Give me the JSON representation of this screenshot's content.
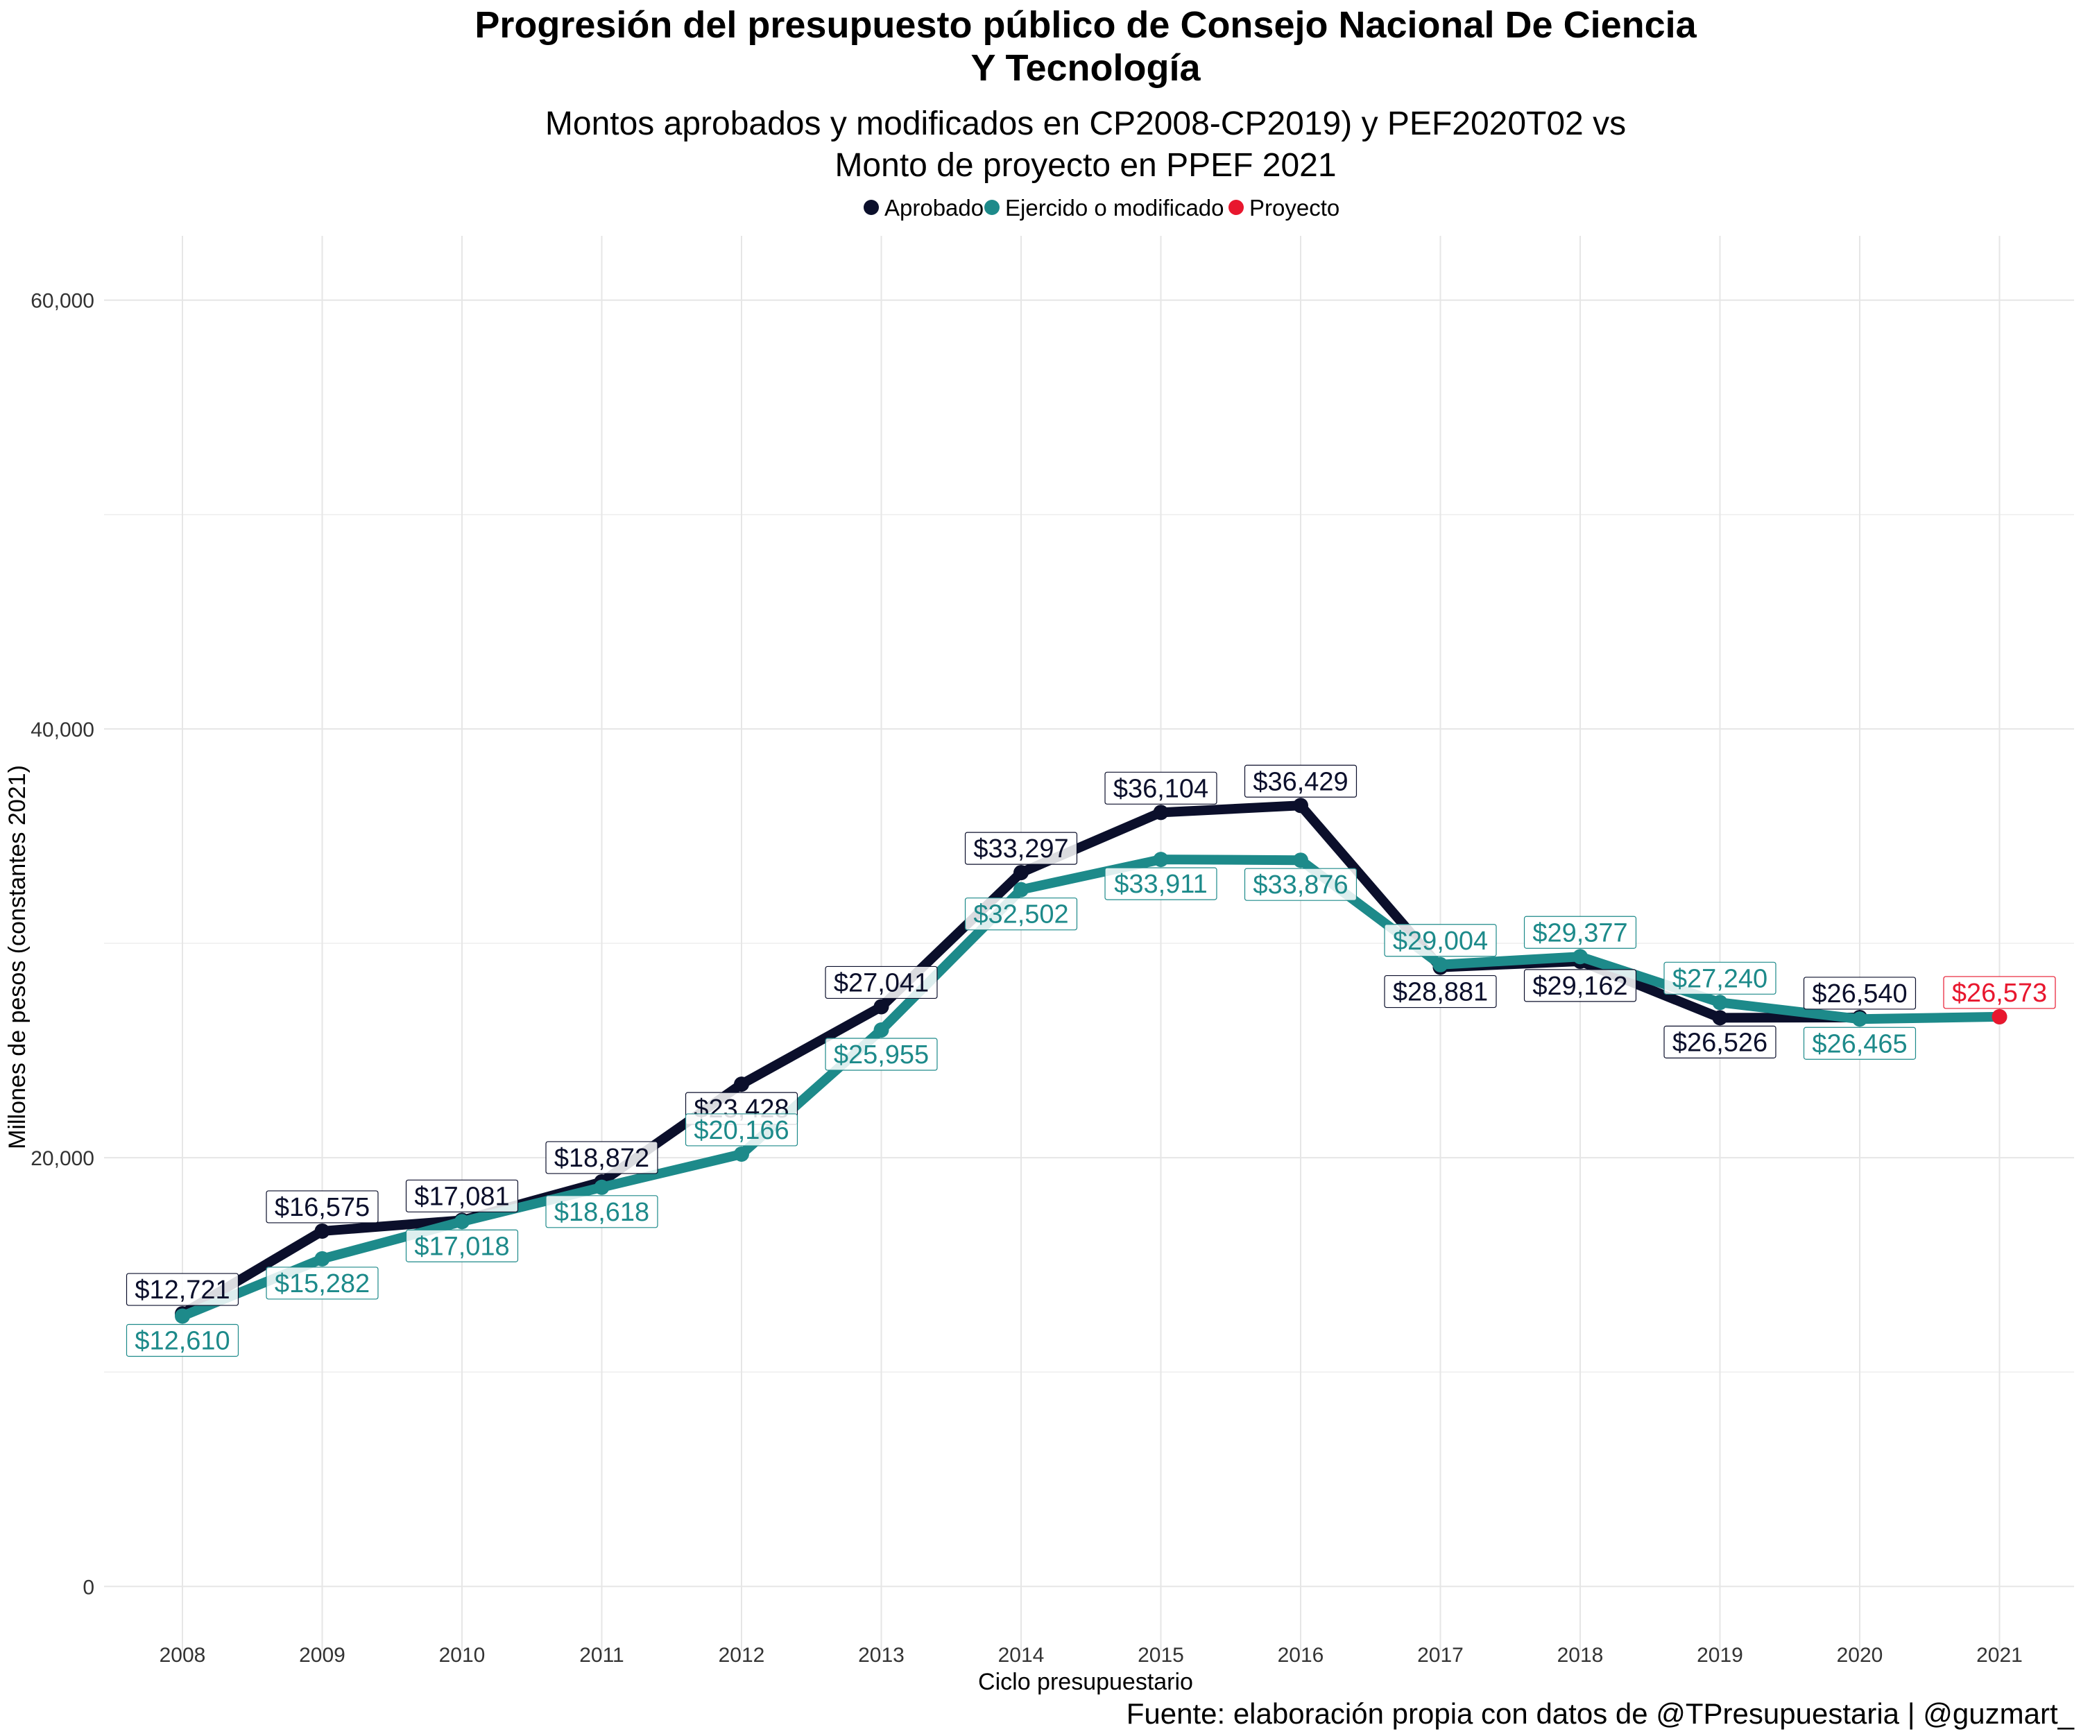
{
  "chart_data": {
    "type": "line",
    "title_lines": [
      "Progresión del presupuesto público de Consejo Nacional De Ciencia",
      "Y Tecnología"
    ],
    "subtitle_lines": [
      "Montos aprobados y modificados en CP2008-CP2019) y PEF2020T02 vs",
      "Monto de proyecto en PPEF 2021"
    ],
    "xlabel": "Ciclo presupuestario",
    "ylabel": "Millones de pesos (constantes 2021)",
    "caption": "Fuente: elaboración propia con datos de @TPresupuestaria | @guzmart_",
    "ylim": [
      -3000,
      63000
    ],
    "y_ticks": [
      0,
      20000,
      40000,
      60000
    ],
    "y_tick_labels": [
      "0",
      "20,000",
      "40,000",
      "60,000"
    ],
    "grid": true,
    "legend_position": "top",
    "x": [
      "2008",
      "2009",
      "2010",
      "2011",
      "2012",
      "2013",
      "2014",
      "2015",
      "2016",
      "2017",
      "2018",
      "2019",
      "2020",
      "2021"
    ],
    "series": [
      {
        "name": "Aprobado",
        "color": "#0b0f2b",
        "values": [
          12721,
          16575,
          17081,
          18872,
          23428,
          27041,
          33297,
          36104,
          36429,
          28881,
          29162,
          26526,
          26540,
          null
        ],
        "labels": [
          "$12,721",
          "$16,575",
          "$17,081",
          "$18,872",
          "$23,428",
          "$27,041",
          "$33,297",
          "$36,104",
          "$36,429",
          "$28,881",
          "$29,162",
          "$26,526",
          "$26,540",
          null
        ]
      },
      {
        "name": "Ejercido o modificado",
        "color": "#1d8a8a",
        "values": [
          12610,
          15282,
          17018,
          18618,
          20166,
          25955,
          32502,
          33911,
          33876,
          29004,
          29377,
          27240,
          26465,
          26573
        ],
        "labels": [
          "$12,610",
          "$15,282",
          "$17,018",
          "$18,618",
          "$20,166",
          "$25,955",
          "$32,502",
          "$33,911",
          "$33,876",
          "$29,004",
          "$29,377",
          "$27,240",
          "$26,465",
          null
        ]
      },
      {
        "name": "Proyecto",
        "color": "#e8172e",
        "values": [
          null,
          null,
          null,
          null,
          null,
          null,
          null,
          null,
          null,
          null,
          null,
          null,
          null,
          26573
        ],
        "labels": [
          null,
          null,
          null,
          null,
          null,
          null,
          null,
          null,
          null,
          null,
          null,
          null,
          null,
          "$26,573"
        ]
      }
    ]
  }
}
